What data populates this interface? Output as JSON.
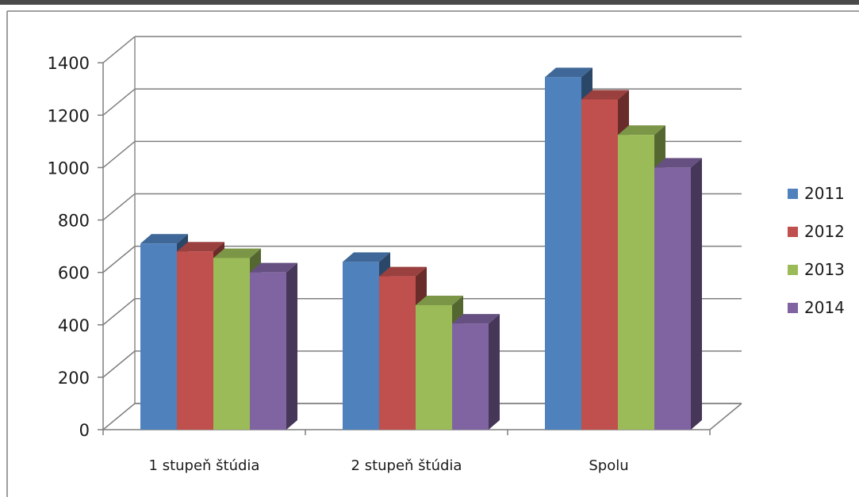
{
  "chart_data": {
    "type": "bar",
    "title": "",
    "xlabel": "",
    "ylabel": "",
    "ylim": [
      0,
      1400
    ],
    "yticks": [
      0,
      200,
      400,
      600,
      800,
      1000,
      1200,
      1400
    ],
    "categories": [
      "1 stupeň štúdia",
      "2 stupeň štúdia",
      "Spolu"
    ],
    "series": [
      {
        "name": "2011",
        "values": [
          710,
          640,
          1345
        ],
        "color": "#4F81BD"
      },
      {
        "name": "2012",
        "values": [
          680,
          585,
          1260
        ],
        "color": "#C0504D"
      },
      {
        "name": "2013",
        "values": [
          655,
          475,
          1125
        ],
        "color": "#9BBB59"
      },
      {
        "name": "2014",
        "values": [
          600,
          405,
          1000
        ],
        "color": "#8064A2"
      }
    ],
    "grid": true,
    "legend": "right",
    "style": "3d-clustered-column"
  }
}
